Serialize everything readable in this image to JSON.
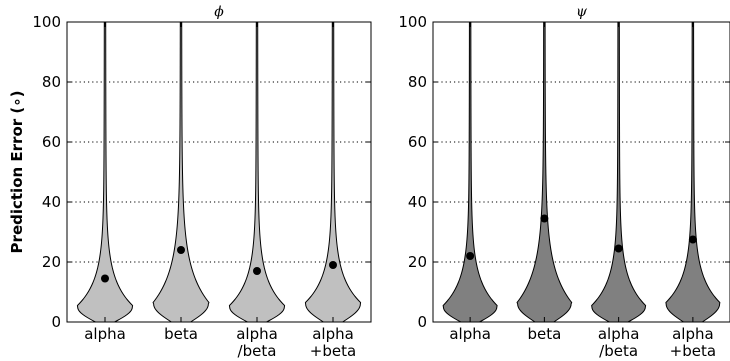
{
  "chart_data": [
    {
      "type": "violin",
      "title": "ϕ",
      "ylabel": "Prediction Error (∘)",
      "ylim": [
        0,
        100
      ],
      "yticks": [
        0,
        20,
        40,
        60,
        80,
        100
      ],
      "grid": "horizontal dotted",
      "fill_color": "#c0c0c0",
      "categories": [
        "alpha",
        "beta",
        "alpha\n/beta",
        "alpha\n+beta"
      ],
      "means": [
        14.5,
        24,
        17,
        19
      ],
      "mode": [
        5,
        6,
        5,
        6
      ],
      "max": [
        100,
        100,
        100,
        100
      ]
    },
    {
      "type": "violin",
      "title": "ψ",
      "ylabel": "",
      "ylim": [
        0,
        100
      ],
      "yticks": [
        0,
        20,
        40,
        60,
        80,
        100
      ],
      "grid": "horizontal dotted",
      "fill_color": "#808080",
      "categories": [
        "alpha",
        "beta",
        "alpha\n/beta",
        "alpha\n+beta"
      ],
      "means": [
        22,
        34.5,
        24.5,
        27.5
      ],
      "mode": [
        5,
        6,
        5,
        6
      ],
      "max": [
        100,
        100,
        100,
        100
      ]
    }
  ]
}
